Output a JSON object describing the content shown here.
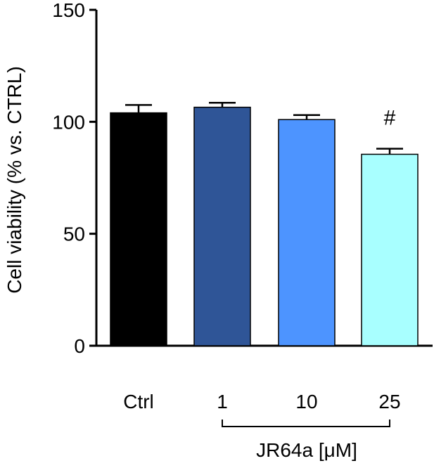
{
  "chart_data": {
    "type": "bar",
    "categories": [
      "Ctrl",
      "1",
      "10",
      "25"
    ],
    "values": [
      104,
      106.5,
      101,
      85.5
    ],
    "errors": [
      3.5,
      2,
      2,
      2.5
    ],
    "bar_colors": [
      "#000000",
      "#2f5597",
      "#4d94ff",
      "#a8ffff"
    ],
    "annotations": [
      "",
      "",
      "",
      "#"
    ],
    "ylabel": "Cell viability (% vs. CTRL)",
    "xgroup_label": "JR64a [μM]",
    "xgroup_members": [
      "1",
      "10",
      "25"
    ],
    "ylim": [
      0,
      150
    ],
    "yticks": [
      0,
      50,
      100,
      150
    ],
    "grid": false,
    "legend": "none"
  }
}
